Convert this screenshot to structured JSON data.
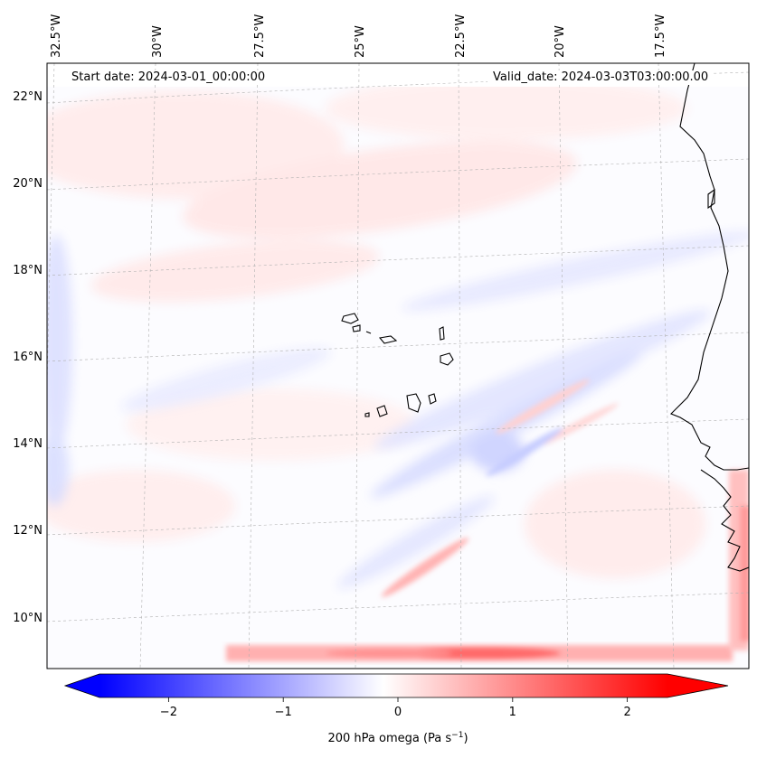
{
  "map": {
    "start_date_text": "Start date: 2024-03-01_00:00:00",
    "valid_date_text": "Valid_date: 2024-03-03T03:00:00.00",
    "lon_labels": [
      "32.5°W",
      "30°W",
      "27.5°W",
      "25°W",
      "22.5°W",
      "20°W",
      "17.5°W"
    ],
    "lat_labels": [
      "22°N",
      "20°N",
      "18°N",
      "16°N",
      "14°N",
      "12°N",
      "10°N"
    ],
    "coastline_color": "#000000",
    "gridline_color": "#b0b0b0"
  },
  "colorbar": {
    "title_prefix": "200 hPa omega (Pa s",
    "title_sup": "−1",
    "title_suffix": ")",
    "ticks": [
      "−2",
      "−1",
      "0",
      "1",
      "2"
    ],
    "tick_values": [
      -2,
      -1,
      0,
      1,
      2
    ],
    "vmin": -2.5,
    "vmax": 2.5,
    "colormap": "bwr",
    "extend": "both",
    "low_color": "#0000ff",
    "mid_color": "#ffffff",
    "high_color": "#ff0000"
  }
}
